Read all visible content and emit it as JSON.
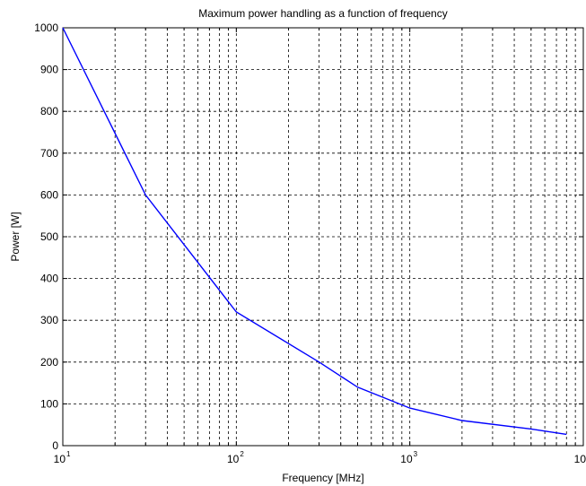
{
  "chart_data": {
    "type": "line",
    "title": "Maximum power handling as a function of frequency",
    "xlabel": "Frequency [MHz]",
    "ylabel": "Power [W]",
    "xscale": "log",
    "xlim": [
      10,
      10000
    ],
    "ylim": [
      0,
      1000
    ],
    "grid": true,
    "line_color": "#0000ff",
    "x_ticks": [
      {
        "base": "10",
        "exp": "1"
      },
      {
        "base": "10",
        "exp": "2"
      },
      {
        "base": "10",
        "exp": "3"
      },
      {
        "base": "10",
        "exp": "4"
      }
    ],
    "y_ticks": [
      "0",
      "100",
      "200",
      "300",
      "400",
      "500",
      "600",
      "700",
      "800",
      "900",
      "1000"
    ],
    "series": [
      {
        "x": [
          10,
          30,
          100,
          300,
          500,
          1000,
          2000,
          5000,
          8000
        ],
        "y": [
          1000,
          600,
          320,
          200,
          140,
          90,
          60,
          40,
          27
        ]
      }
    ]
  }
}
